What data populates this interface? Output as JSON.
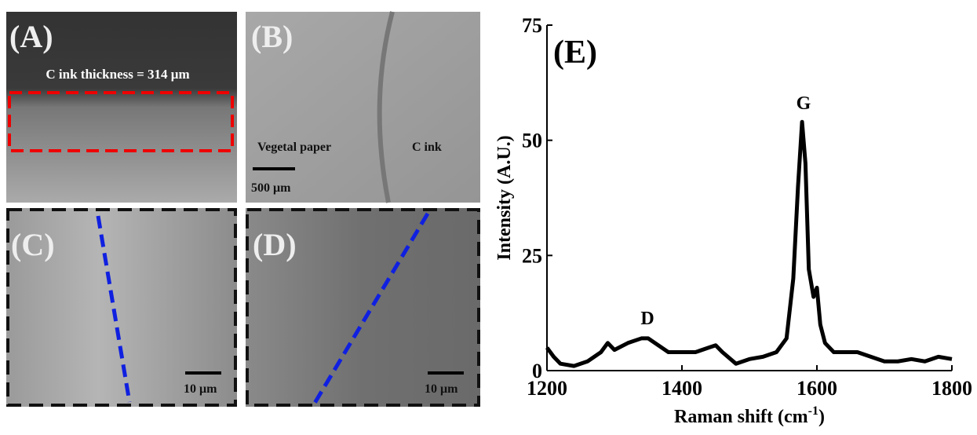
{
  "panels": [
    {
      "label": "(A)",
      "texts": [
        "C ink thickness = 314 μm"
      ]
    },
    {
      "label": "(B)",
      "texts": [
        "Vegetal paper",
        "C ink",
        "500 μm"
      ]
    },
    {
      "label": "(C)",
      "texts": [
        "10 μm"
      ]
    },
    {
      "label": "(D)",
      "texts": [
        "10 μm"
      ]
    }
  ],
  "chart_data": {
    "type": "line",
    "color": "#000000",
    "y_label": "Intensity (A.U.)",
    "x_label": [
      "Raman shift (cm",
      "-1",
      ")"
    ],
    "annotations": [
      "(E)",
      "D",
      "G"
    ],
    "xlim": [
      1200,
      1800
    ],
    "xticks": [
      1200,
      1400,
      1600,
      1800
    ],
    "ylim": [
      0,
      75
    ],
    "yticks": [
      0,
      25,
      50,
      75
    ],
    "x": [
      1200,
      1210,
      1220,
      1240,
      1260,
      1280,
      1290,
      1300,
      1320,
      1340,
      1350,
      1360,
      1380,
      1400,
      1420,
      1440,
      1450,
      1460,
      1480,
      1500,
      1520,
      1540,
      1555,
      1565,
      1572,
      1578,
      1583,
      1588,
      1595,
      1600,
      1605,
      1612,
      1625,
      1640,
      1660,
      1680,
      1700,
      1720,
      1740,
      1760,
      1780,
      1800
    ],
    "values": [
      5,
      3,
      1.5,
      1,
      2,
      4,
      6,
      4.5,
      6,
      7,
      7,
      6,
      4,
      4,
      4,
      5,
      5.5,
      4,
      1.5,
      2.5,
      3,
      4,
      7,
      20,
      40,
      54,
      45,
      22,
      16,
      18,
      10,
      6,
      4,
      4,
      4,
      3,
      2,
      2,
      2.5,
      2,
      3,
      2.5
    ]
  }
}
